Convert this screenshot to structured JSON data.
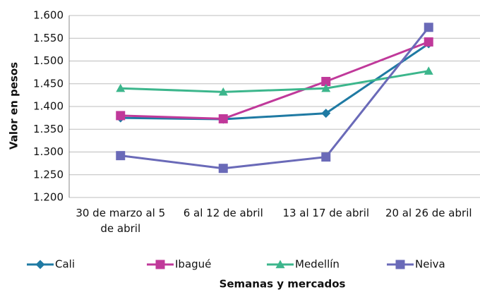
{
  "chart_data": {
    "type": "line",
    "ylabel": "Valor en pesos",
    "xlabel": "Semanas y mercados",
    "categories": [
      "30 de marzo al 5 de abril",
      "6 al 12 de abril",
      "13 al 17 de abril",
      "20 al 26 de abril"
    ],
    "series": [
      {
        "name": "Cali",
        "color": "#1f7aa3",
        "marker": "diamond",
        "values": [
          1375,
          1372,
          1385,
          1538
        ]
      },
      {
        "name": "Ibagué",
        "color": "#c0399a",
        "marker": "square",
        "values": [
          1380,
          1373,
          1455,
          1542
        ]
      },
      {
        "name": "Medellín",
        "color": "#3cb68c",
        "marker": "triangle",
        "values": [
          1440,
          1432,
          1440,
          1478
        ]
      },
      {
        "name": "Neiva",
        "color": "#6a6ab8",
        "marker": "square",
        "values": [
          1292,
          1264,
          1289,
          1574
        ]
      }
    ],
    "ylim": [
      1200,
      1600
    ],
    "yticks": [
      {
        "value": 1200,
        "label": "1.200"
      },
      {
        "value": 1250,
        "label": "1.250"
      },
      {
        "value": 1300,
        "label": "1.300"
      },
      {
        "value": 1350,
        "label": "1.350"
      },
      {
        "value": 1400,
        "label": "1.400"
      },
      {
        "value": 1450,
        "label": "1.450"
      },
      {
        "value": 1500,
        "label": "1.500"
      },
      {
        "value": 1550,
        "label": "1.550"
      },
      {
        "value": 1600,
        "label": "1.600"
      }
    ],
    "grid": true,
    "legend": "bottom"
  }
}
